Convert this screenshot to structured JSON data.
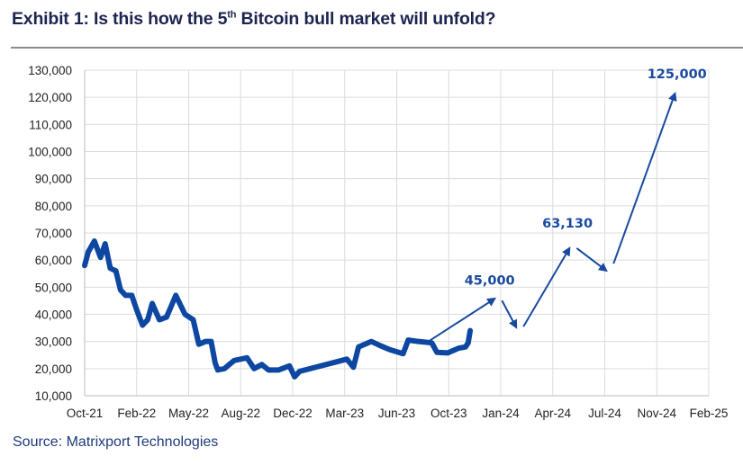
{
  "title": {
    "prefix": "Exhibit 1: Is this how the 5",
    "sup": "th",
    "suffix": " Bitcoin bull market will unfold?"
  },
  "source": "Source: Matrixport Technologies",
  "chart_data": {
    "type": "line",
    "title": "Exhibit 1: Is this how the 5th Bitcoin bull market will unfold?",
    "xlabel": "",
    "ylabel": "",
    "ylim": [
      10000,
      130000
    ],
    "xlim": [
      "2021-10-01",
      "2025-02-01"
    ],
    "grid": true,
    "color": "#0d47a1",
    "y_ticks": [
      "10,000",
      "20,000",
      "30,000",
      "40,000",
      "50,000",
      "60,000",
      "70,000",
      "80,000",
      "90,000",
      "100,000",
      "110,000",
      "120,000",
      "130,000"
    ],
    "x_ticks": [
      "Oct-21",
      "Feb-22",
      "May-22",
      "Aug-22",
      "Dec-22",
      "Mar-23",
      "Jun-23",
      "Oct-23",
      "Jan-24",
      "Apr-24",
      "Jul-24",
      "Nov-24",
      "Feb-25"
    ],
    "series": [
      {
        "x": [
          "2021-10-01",
          "2021-10-08",
          "2021-10-20",
          "2021-11-01",
          "2021-11-10",
          "2021-11-20",
          "2021-12-01",
          "2021-12-10",
          "2021-12-20",
          "2022-01-01",
          "2022-01-10",
          "2022-01-22",
          "2022-02-01",
          "2022-02-10",
          "2022-02-24",
          "2022-03-10",
          "2022-03-28",
          "2022-04-15",
          "2022-05-01",
          "2022-05-12",
          "2022-05-25",
          "2022-06-05",
          "2022-06-13",
          "2022-06-18",
          "2022-07-01",
          "2022-07-20",
          "2022-08-14",
          "2022-08-28",
          "2022-09-12",
          "2022-09-25",
          "2022-10-15",
          "2022-11-05",
          "2022-11-15",
          "2022-11-25",
          "2023-02-15",
          "2023-02-25",
          "2023-03-10",
          "2023-03-20",
          "2023-04-14",
          "2023-05-01",
          "2023-05-20",
          "2023-06-15",
          "2023-06-25",
          "2023-07-15",
          "2023-08-10",
          "2023-08-20",
          "2023-09-10",
          "2023-10-01",
          "2023-10-15",
          "2023-10-20",
          "2023-10-24"
        ],
        "y": [
          58000,
          63000,
          67000,
          61000,
          66000,
          57000,
          56000,
          49000,
          47000,
          47000,
          42000,
          36000,
          38000,
          44000,
          38000,
          39000,
          47000,
          40000,
          38000,
          29000,
          30000,
          30000,
          22000,
          19500,
          20000,
          23000,
          24000,
          20000,
          21500,
          19500,
          19500,
          21000,
          17000,
          19000,
          23000,
          23500,
          20500,
          28000,
          30000,
          28500,
          27000,
          25500,
          30500,
          30000,
          29500,
          26000,
          25800,
          27500,
          28000,
          29500,
          34000
        ]
      }
    ],
    "annotations": {
      "arrows": [
        {
          "from": [
            "2023-08-05",
            30200
          ],
          "to": [
            "2023-12-11",
            45800
          ]
        },
        {
          "from": [
            "2023-12-25",
            45100
          ],
          "to": [
            "2024-01-22",
            35200
          ]
        },
        {
          "from": [
            "2024-02-05",
            35500
          ],
          "to": [
            "2024-05-05",
            64400
          ]
        },
        {
          "from": [
            "2024-05-19",
            64400
          ],
          "to": [
            "2024-07-16",
            56100
          ]
        },
        {
          "from": [
            "2024-07-30",
            58700
          ],
          "to": [
            "2024-11-27",
            121400
          ]
        }
      ],
      "labels": [
        {
          "text": "45,000",
          "x": "2023-12-01",
          "y": 51000
        },
        {
          "text": "63,130",
          "x": "2024-05-01",
          "y": 72000
        },
        {
          "text": "125,000",
          "x": "2024-12-01",
          "y": 127000
        }
      ]
    }
  }
}
